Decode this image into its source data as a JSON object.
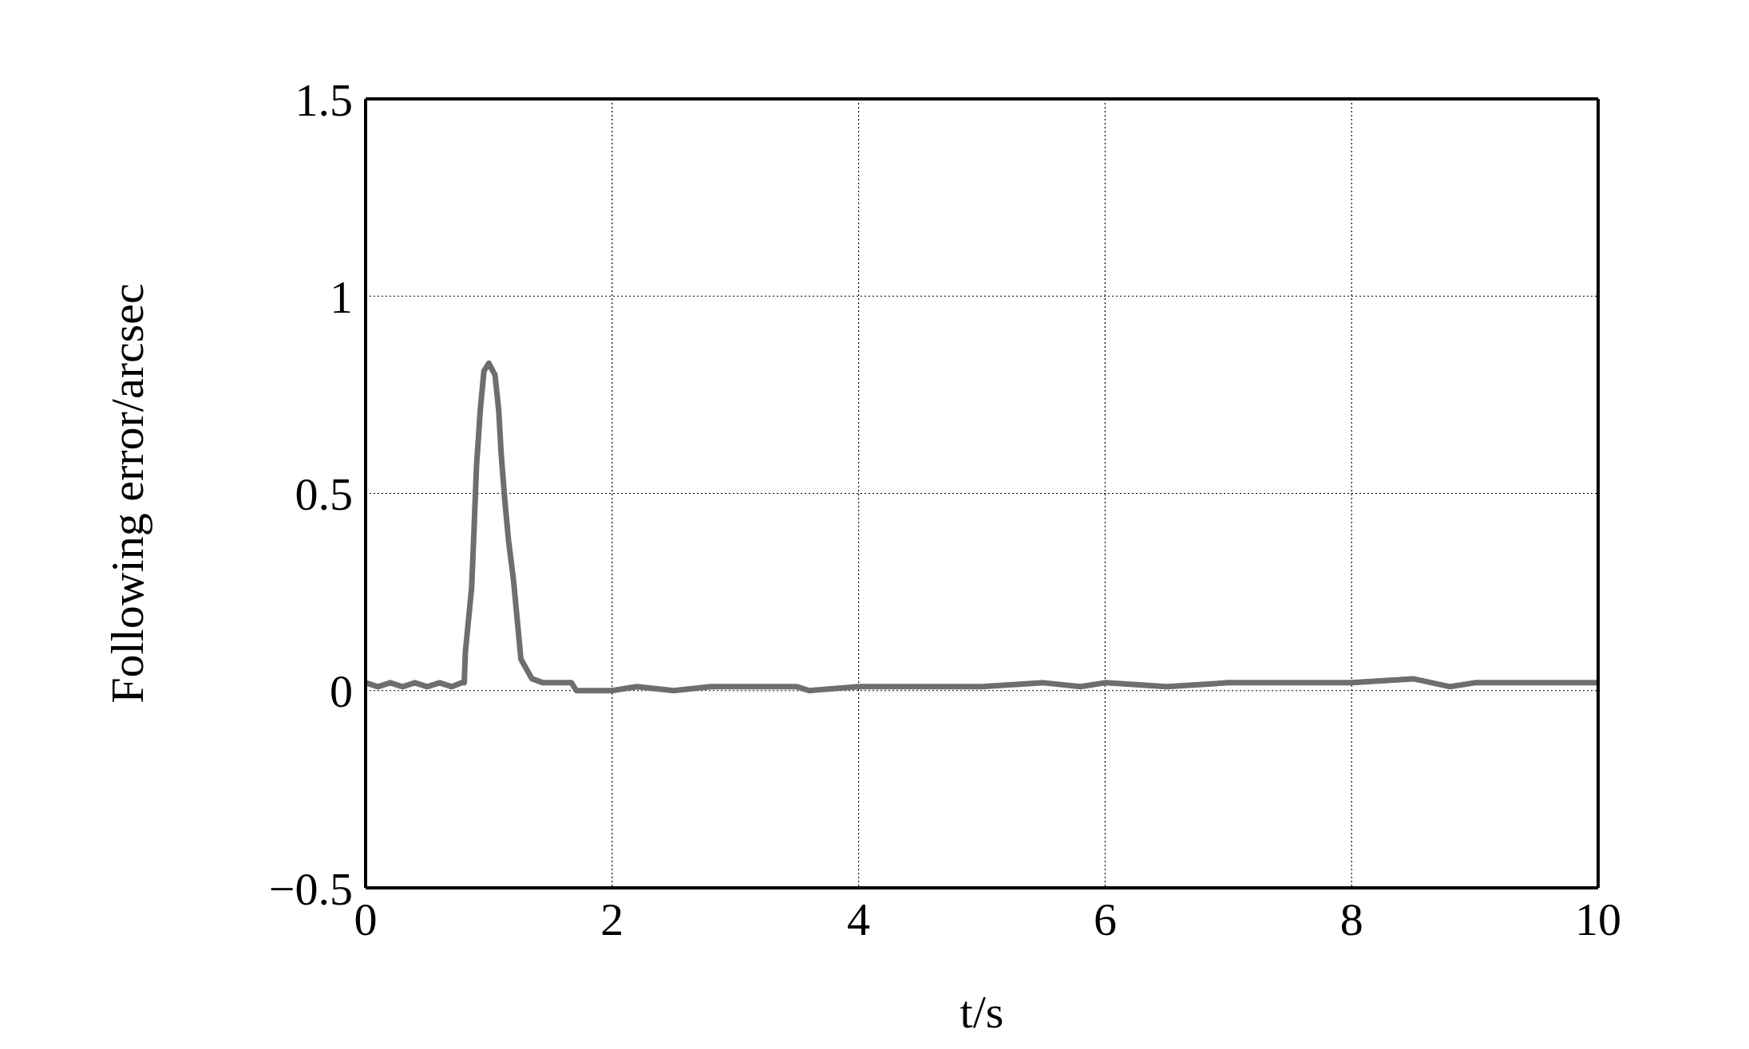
{
  "chart_data": {
    "type": "line",
    "xlabel": "t/s",
    "ylabel": "Following error/arcsec",
    "x": [
      0,
      0.1,
      0.2,
      0.3,
      0.4,
      0.5,
      0.6,
      0.7,
      0.78,
      0.8,
      0.81,
      0.86,
      0.88,
      0.9,
      0.93,
      0.96,
      1.0,
      1.05,
      1.08,
      1.1,
      1.13,
      1.16,
      1.2,
      1.23,
      1.26,
      1.35,
      1.44,
      1.67,
      1.71,
      2.0,
      2.2,
      2.5,
      2.8,
      3.0,
      3.5,
      3.6,
      4.0,
      4.2,
      4.5,
      5.0,
      5.5,
      5.8,
      6.0,
      6.5,
      7.0,
      7.5,
      8.0,
      8.5,
      8.8,
      9.0,
      9.5,
      10.0
    ],
    "series": [
      {
        "color": "#6e6e6e",
        "values": [
          0.02,
          0.01,
          0.02,
          0.01,
          0.02,
          0.01,
          0.02,
          0.01,
          0.02,
          0.02,
          0.1,
          0.26,
          0.41,
          0.57,
          0.71,
          0.81,
          0.83,
          0.8,
          0.71,
          0.6,
          0.48,
          0.38,
          0.28,
          0.18,
          0.08,
          0.03,
          0.02,
          0.02,
          0.0,
          0.0,
          0.01,
          0.0,
          0.01,
          0.01,
          0.01,
          0.0,
          0.01,
          0.01,
          0.01,
          0.01,
          0.02,
          0.01,
          0.02,
          0.01,
          0.02,
          0.02,
          0.02,
          0.03,
          0.01,
          0.02,
          0.02,
          0.02
        ]
      }
    ],
    "xlim": [
      0,
      10
    ],
    "xticks": [
      0,
      2,
      4,
      6,
      8,
      10
    ],
    "ylim": [
      -0.5,
      1.5
    ],
    "yticks": [
      {
        "value": -0.5,
        "label": "−0.5"
      },
      0,
      0.5,
      1,
      1.5
    ],
    "grid": true,
    "marker": "none",
    "line_style": "solid"
  }
}
